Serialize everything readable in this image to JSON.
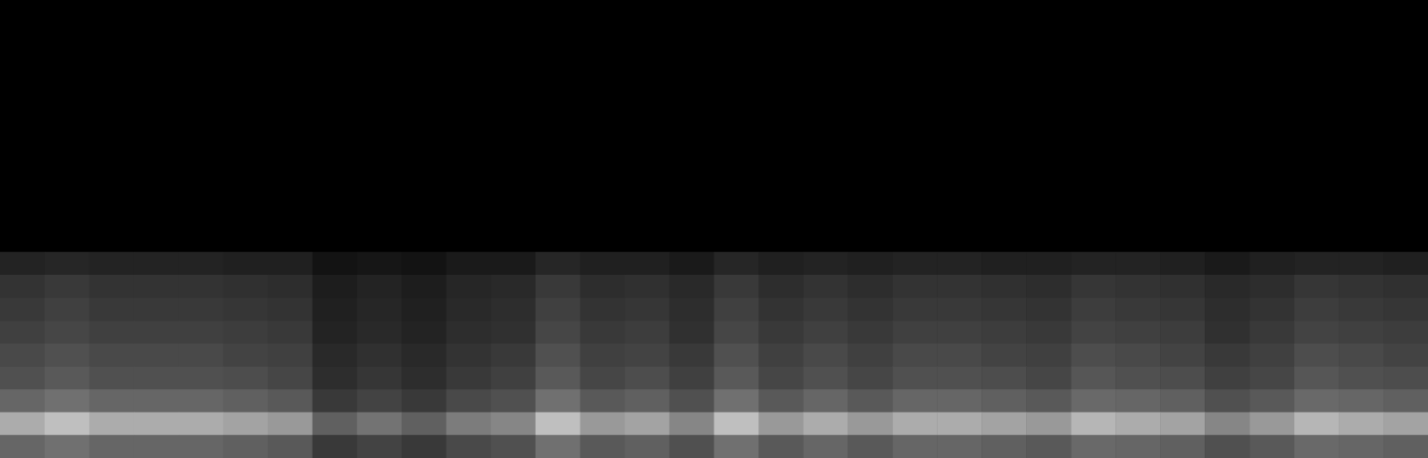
{
  "chart_data": {
    "type": "heatmap",
    "tick_labels": false,
    "zlim": [
      0,
      80
    ],
    "cells": [
      [
        0,
        0,
        0,
        0,
        0,
        0,
        0,
        0,
        0,
        0,
        0,
        0,
        0,
        0,
        0,
        0,
        0,
        0,
        0,
        0,
        0,
        0,
        0,
        0,
        0,
        0,
        0,
        0,
        0,
        0,
        0,
        0
      ],
      [
        0,
        0,
        0,
        0,
        0,
        0,
        0,
        0,
        0,
        0,
        0,
        0,
        0,
        0,
        0,
        0,
        0,
        0,
        0,
        0,
        0,
        0,
        0,
        0,
        0,
        0,
        0,
        0,
        0,
        0,
        0,
        0
      ],
      [
        0,
        0,
        0,
        0,
        0,
        0,
        0,
        0,
        0,
        0,
        0,
        0,
        0,
        0,
        0,
        0,
        0,
        0,
        0,
        0,
        0,
        0,
        0,
        0,
        0,
        0,
        0,
        0,
        0,
        0,
        0,
        0
      ],
      [
        0,
        0,
        0,
        0,
        0,
        0,
        0,
        0,
        0,
        0,
        0,
        0,
        0,
        0,
        0,
        0,
        0,
        0,
        0,
        0,
        0,
        0,
        0,
        0,
        0,
        0,
        0,
        0,
        0,
        0,
        0,
        0
      ],
      [
        0,
        0,
        0,
        0,
        0,
        0,
        0,
        0,
        0,
        0,
        0,
        0,
        0,
        0,
        0,
        0,
        0,
        0,
        0,
        0,
        0,
        0,
        0,
        0,
        0,
        0,
        0,
        0,
        0,
        0,
        0,
        0
      ],
      [
        0,
        0,
        0,
        0,
        0,
        0,
        0,
        0,
        0,
        0,
        0,
        0,
        0,
        0,
        0,
        0,
        0,
        0,
        0,
        0,
        0,
        0,
        0,
        0,
        0,
        0,
        0,
        0,
        0,
        0,
        0,
        0
      ],
      [
        0,
        0,
        0,
        0,
        0,
        0,
        0,
        0,
        0,
        0,
        0,
        0,
        0,
        0,
        0,
        0,
        0,
        0,
        0,
        0,
        0,
        0,
        0,
        0,
        0,
        0,
        0,
        0,
        0,
        0,
        0,
        0
      ],
      [
        0,
        0,
        0,
        0,
        0,
        0,
        0,
        0,
        0,
        0,
        0,
        0,
        0,
        0,
        0,
        0,
        0,
        0,
        0,
        0,
        0,
        0,
        0,
        0,
        0,
        0,
        0,
        0,
        0,
        0,
        0,
        0
      ],
      [
        0,
        0,
        0,
        0,
        0,
        0,
        0,
        0,
        0,
        0,
        0,
        0,
        0,
        0,
        0,
        0,
        0,
        0,
        0,
        0,
        0,
        0,
        0,
        0,
        0,
        0,
        0,
        0,
        0,
        0,
        0,
        0
      ],
      [
        0,
        0,
        0,
        0,
        0,
        0,
        0,
        0,
        0,
        0,
        0,
        0,
        0,
        0,
        0,
        0,
        0,
        0,
        0,
        0,
        0,
        0,
        0,
        0,
        0,
        0,
        0,
        0,
        0,
        0,
        0,
        0
      ],
      [
        0,
        0,
        0,
        0,
        0,
        0,
        0,
        0,
        0,
        0,
        0,
        0,
        0,
        0,
        0,
        0,
        0,
        0,
        0,
        0,
        0,
        0,
        0,
        0,
        0,
        0,
        0,
        0,
        0,
        0,
        0,
        0
      ],
      [
        11,
        12,
        11,
        11,
        11,
        10,
        10,
        6,
        7,
        6,
        8,
        8,
        12,
        10,
        10,
        8,
        12,
        10,
        11,
        10,
        11,
        11,
        10,
        10,
        11,
        11,
        10,
        8,
        10,
        11,
        11,
        10
      ],
      [
        16,
        18,
        16,
        16,
        16,
        15,
        14,
        9,
        11,
        9,
        12,
        13,
        18,
        14,
        15,
        13,
        18,
        14,
        16,
        14,
        16,
        16,
        15,
        14,
        17,
        16,
        15,
        13,
        14,
        17,
        16,
        15
      ],
      [
        18,
        20,
        18,
        18,
        18,
        17,
        16,
        10,
        12,
        10,
        13,
        14,
        20,
        16,
        17,
        14,
        20,
        16,
        18,
        16,
        18,
        18,
        17,
        16,
        19,
        18,
        17,
        14,
        16,
        19,
        18,
        17
      ],
      [
        20,
        22,
        20,
        20,
        20,
        19,
        18,
        11,
        13,
        11,
        14,
        15,
        22,
        18,
        19,
        15,
        22,
        18,
        20,
        18,
        20,
        20,
        19,
        18,
        21,
        20,
        19,
        15,
        18,
        21,
        20,
        19
      ],
      [
        23,
        25,
        23,
        23,
        23,
        21,
        20,
        13,
        15,
        13,
        16,
        18,
        25,
        20,
        21,
        18,
        25,
        20,
        23,
        20,
        23,
        23,
        21,
        20,
        24,
        23,
        21,
        18,
        20,
        24,
        23,
        21
      ],
      [
        25,
        28,
        25,
        25,
        25,
        24,
        22,
        14,
        17,
        14,
        18,
        20,
        28,
        22,
        24,
        20,
        28,
        22,
        25,
        22,
        25,
        25,
        24,
        22,
        27,
        25,
        24,
        20,
        22,
        27,
        25,
        24
      ],
      [
        32,
        35,
        32,
        32,
        32,
        30,
        28,
        18,
        21,
        18,
        23,
        25,
        35,
        28,
        30,
        25,
        35,
        28,
        32,
        28,
        32,
        32,
        30,
        28,
        33,
        32,
        30,
        25,
        28,
        33,
        32,
        30
      ],
      [
        54,
        60,
        54,
        54,
        54,
        51,
        48,
        30,
        36,
        30,
        39,
        42,
        60,
        48,
        51,
        42,
        60,
        48,
        54,
        48,
        54,
        54,
        51,
        48,
        57,
        54,
        51,
        42,
        48,
        57,
        54,
        51
      ],
      [
        32,
        35,
        32,
        32,
        32,
        30,
        28,
        18,
        21,
        18,
        23,
        25,
        35,
        28,
        30,
        25,
        35,
        28,
        32,
        28,
        32,
        32,
        30,
        28,
        33,
        32,
        30,
        25,
        28,
        33,
        32,
        30
      ]
    ]
  }
}
